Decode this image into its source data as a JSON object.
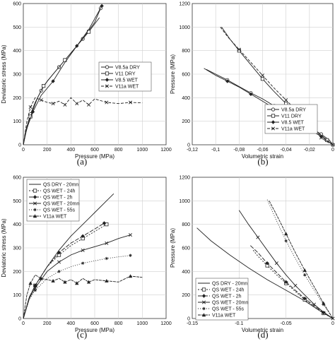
{
  "chart_data": [
    {
      "type": "line",
      "panel_label": "(a)",
      "xlabel": "Pressure (MPa)",
      "ylabel": "Deviatoric stress (MPa)",
      "xlim": [
        0,
        1200
      ],
      "ylim": [
        0,
        600
      ],
      "xticks": [
        "0",
        "200",
        "400",
        "600",
        "800",
        "1000",
        "1200"
      ],
      "yticks": [
        "0",
        "100",
        "200",
        "300",
        "400",
        "500",
        "600"
      ],
      "legend_position": "center-right",
      "series": [
        {
          "name": "V8.5a DRY",
          "marker": "circle",
          "dash": "",
          "x": [
            0,
            20,
            60,
            100,
            150,
            200,
            300,
            400,
            500,
            600,
            650
          ],
          "y": [
            0,
            60,
            130,
            180,
            230,
            270,
            330,
            390,
            450,
            520,
            580
          ]
        },
        {
          "name": "V11 DRY",
          "marker": "square",
          "dash": "",
          "x": [
            0,
            20,
            60,
            120,
            170,
            250,
            350,
            450,
            550,
            640
          ],
          "y": [
            0,
            50,
            120,
            200,
            250,
            300,
            360,
            420,
            480,
            540
          ]
        },
        {
          "name": "V8.5 WET",
          "marker": "diamond",
          "dash": "",
          "x": [
            0,
            30,
            80,
            150,
            250,
            350,
            450,
            550,
            660
          ],
          "y": [
            0,
            70,
            140,
            210,
            270,
            350,
            420,
            490,
            590
          ]
        },
        {
          "name": "V11a WET",
          "marker": "x",
          "dash": "4 2",
          "x": [
            0,
            30,
            60,
            100,
            150,
            200,
            250,
            300,
            350,
            400,
            450,
            500,
            550,
            600,
            700,
            800,
            900,
            1000
          ],
          "y": [
            0,
            100,
            160,
            200,
            190,
            180,
            175,
            185,
            170,
            200,
            175,
            190,
            170,
            195,
            180,
            175,
            180,
            178
          ]
        }
      ]
    },
    {
      "type": "line",
      "panel_label": "(b)",
      "xlabel": "Volumetric strain",
      "ylabel": "Pressure (MPa)",
      "xlim": [
        -0.12,
        0
      ],
      "ylim": [
        0,
        1200
      ],
      "xticks": [
        "-0,12",
        "-0,1",
        "-0,08",
        "-0,06",
        "-0,04",
        "-0,02",
        "0"
      ],
      "yticks": [
        "0",
        "200",
        "400",
        "600",
        "800",
        "1000",
        "1200"
      ],
      "legend_position": "center-right",
      "series": [
        {
          "name": "V8.5a DRY",
          "marker": "circle",
          "dash": "",
          "x": [
            -0.108,
            -0.1,
            -0.09,
            -0.08,
            -0.07,
            -0.06,
            -0.05,
            -0.04,
            -0.03,
            -0.02,
            -0.01,
            -0.003,
            0
          ],
          "y": [
            640,
            600,
            550,
            495,
            440,
            390,
            330,
            270,
            210,
            150,
            90,
            40,
            0
          ]
        },
        {
          "name": "V11 DRY",
          "marker": "square",
          "dash": "",
          "x": [
            -0.095,
            -0.088,
            -0.08,
            -0.07,
            -0.06,
            -0.05,
            -0.04,
            -0.03,
            -0.02,
            -0.012,
            -0.005,
            0
          ],
          "y": [
            1000,
            900,
            800,
            680,
            560,
            450,
            350,
            260,
            170,
            100,
            40,
            0
          ]
        },
        {
          "name": "V8.5 WET",
          "marker": "diamond",
          "dash": "",
          "x": [
            -0.11,
            -0.1,
            -0.09,
            -0.08,
            -0.07,
            -0.06,
            -0.05,
            -0.04,
            -0.03,
            -0.02,
            -0.01,
            0
          ],
          "y": [
            650,
            590,
            540,
            490,
            430,
            370,
            310,
            250,
            190,
            130,
            70,
            0
          ]
        },
        {
          "name": "V11a WET",
          "marker": "x",
          "dash": "4 2",
          "x": [
            -0.096,
            -0.09,
            -0.08,
            -0.07,
            -0.06,
            -0.05,
            -0.04,
            -0.03,
            -0.02,
            -0.015,
            -0.01,
            -0.005,
            0
          ],
          "y": [
            1000,
            920,
            810,
            700,
            590,
            480,
            380,
            280,
            200,
            130,
            60,
            25,
            0
          ]
        }
      ]
    },
    {
      "type": "line",
      "panel_label": "(c)",
      "xlabel": "Pressure (MPa)",
      "ylabel": "Deviatoric stress (MPa)",
      "xlim": [
        0,
        1200
      ],
      "ylim": [
        0,
        600
      ],
      "xticks": [
        "0",
        "200",
        "400",
        "600",
        "800",
        "1000",
        "1200"
      ],
      "yticks": [
        "0",
        "100",
        "200",
        "300",
        "400",
        "500",
        "600"
      ],
      "legend_position": "top-left",
      "series": [
        {
          "name": "QS DRY - 20mn",
          "marker": "",
          "dash": "",
          "x": [
            0,
            50,
            100,
            200,
            300,
            400,
            500,
            600,
            700,
            760
          ],
          "y": [
            0,
            90,
            140,
            220,
            290,
            350,
            400,
            450,
            500,
            530
          ]
        },
        {
          "name": "QS WET - 24h",
          "marker": "square",
          "dash": "2 2",
          "x": [
            0,
            50,
            100,
            200,
            300,
            400,
            500,
            600,
            700
          ],
          "y": [
            0,
            90,
            140,
            220,
            270,
            310,
            340,
            370,
            400
          ]
        },
        {
          "name": "QS WET - 2h",
          "marker": "diamond",
          "dash": "6 2",
          "x": [
            0,
            50,
            100,
            200,
            300,
            400,
            500,
            600,
            680
          ],
          "y": [
            0,
            90,
            140,
            220,
            280,
            320,
            350,
            380,
            405
          ]
        },
        {
          "name": "QS WET - 20mn",
          "marker": "x",
          "dash": "",
          "x": [
            0,
            50,
            100,
            200,
            300,
            400,
            500,
            600,
            700,
            800,
            900
          ],
          "y": [
            0,
            85,
            130,
            200,
            240,
            270,
            290,
            305,
            320,
            340,
            355
          ]
        },
        {
          "name": "QS WET - 55s",
          "marker": "star",
          "dash": "1 2",
          "x": [
            0,
            50,
            100,
            200,
            300,
            400,
            500,
            600,
            700,
            800,
            900
          ],
          "y": [
            0,
            80,
            120,
            170,
            200,
            220,
            235,
            245,
            255,
            262,
            268
          ]
        },
        {
          "name": "V11a WET",
          "marker": "triangle",
          "dash": "4 1",
          "x": [
            0,
            30,
            60,
            100,
            150,
            200,
            250,
            300,
            350,
            400,
            450,
            500,
            550,
            600,
            700,
            800,
            900,
            1000
          ],
          "y": [
            0,
            100,
            150,
            185,
            170,
            165,
            160,
            170,
            155,
            165,
            150,
            170,
            155,
            165,
            160,
            155,
            180,
            175
          ]
        }
      ]
    },
    {
      "type": "line",
      "panel_label": "(d)",
      "xlabel": "Volumetric strain",
      "ylabel": "Pressure (MPa)",
      "xlim": [
        -0.15,
        0
      ],
      "ylim": [
        0,
        1200
      ],
      "xticks": [
        "-0.15",
        "-0.1",
        "-0.05",
        "0"
      ],
      "yticks": [
        "0",
        "200",
        "400",
        "600",
        "800",
        "1000",
        "1200"
      ],
      "legend_position": "bottom-left",
      "series": [
        {
          "name": "QS DRY - 20mn",
          "marker": "",
          "dash": "",
          "x": [
            -0.145,
            -0.13,
            -0.11,
            -0.09,
            -0.07,
            -0.05,
            -0.03,
            -0.015,
            0
          ],
          "y": [
            770,
            660,
            540,
            430,
            330,
            240,
            150,
            70,
            0
          ]
        },
        {
          "name": "QS WET - 24h",
          "marker": "square",
          "dash": "2 2",
          "x": [
            -0.085,
            -0.08,
            -0.07,
            -0.06,
            -0.05,
            -0.04,
            -0.03,
            -0.02,
            -0.01,
            0
          ],
          "y": [
            580,
            530,
            450,
            370,
            300,
            230,
            160,
            100,
            45,
            0
          ]
        },
        {
          "name": "QS WET - 2h",
          "marker": "diamond",
          "dash": "6 2",
          "x": [
            -0.088,
            -0.08,
            -0.07,
            -0.06,
            -0.05,
            -0.04,
            -0.03,
            -0.02,
            -0.01,
            0
          ],
          "y": [
            620,
            560,
            470,
            390,
            310,
            240,
            170,
            110,
            50,
            0
          ]
        },
        {
          "name": "QS WET - 20mn",
          "marker": "x",
          "dash": "",
          "x": [
            -0.1,
            -0.09,
            -0.08,
            -0.07,
            -0.06,
            -0.05,
            -0.04,
            -0.03,
            -0.02,
            -0.01,
            0
          ],
          "y": [
            920,
            800,
            690,
            580,
            470,
            370,
            280,
            200,
            120,
            55,
            0
          ]
        },
        {
          "name": "QS WET - 55s",
          "marker": "star",
          "dash": "1 2",
          "x": [
            -0.07,
            -0.06,
            -0.05,
            -0.04,
            -0.03,
            -0.02,
            -0.01,
            0
          ],
          "y": [
            1010,
            830,
            660,
            510,
            370,
            240,
            120,
            0
          ]
        },
        {
          "name": "V11a WET",
          "marker": "triangle",
          "dash": "4 1",
          "x": [
            -0.068,
            -0.06,
            -0.05,
            -0.04,
            -0.03,
            -0.02,
            -0.01,
            0
          ],
          "y": [
            1000,
            880,
            720,
            560,
            410,
            270,
            130,
            0
          ]
        }
      ]
    }
  ]
}
